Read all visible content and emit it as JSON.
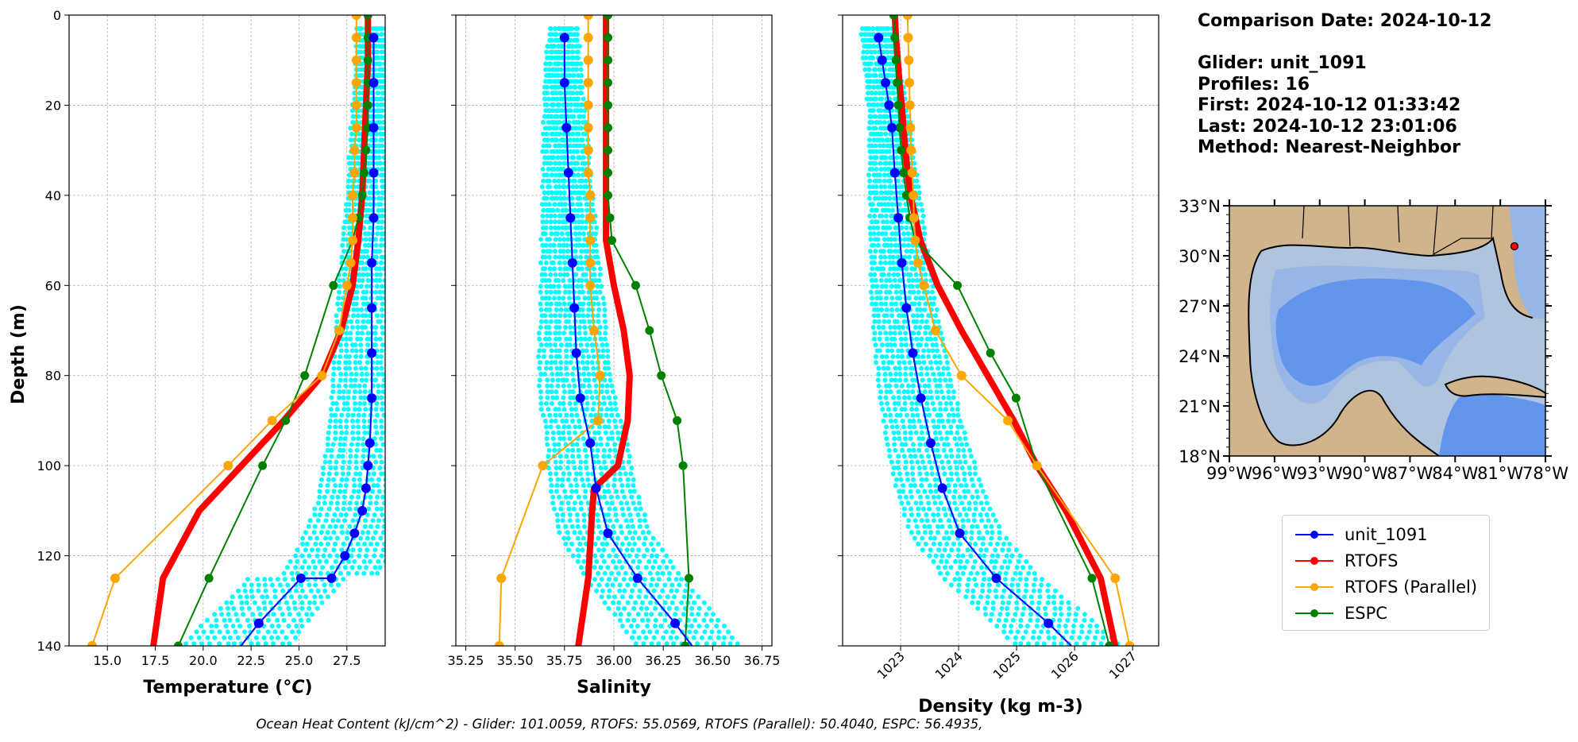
{
  "chart_data": [
    {
      "type": "line",
      "xlabel": "Temperature (°C)",
      "ylabel": "Depth (m)",
      "xlim": [
        13.0,
        29.5
      ],
      "ylim": [
        140,
        0
      ],
      "xticks": [
        15.0,
        17.5,
        20.0,
        22.5,
        25.0,
        27.5
      ],
      "xtick_labels": [
        "15.0",
        "17.5",
        "20.0",
        "22.5",
        "25.0",
        "27.5"
      ],
      "yticks": [
        0,
        20,
        40,
        60,
        80,
        100,
        120,
        140
      ],
      "ytick_labels": [
        "0",
        "20",
        "40",
        "60",
        "80",
        "100",
        "120",
        "140"
      ],
      "grid": true,
      "series": [
        {
          "name": "unit_1091",
          "color": "#0000ff",
          "x": [
            28.9,
            28.9,
            28.9,
            28.9,
            28.9,
            28.8,
            28.8,
            28.8,
            28.8,
            28.7,
            28.6,
            28.5,
            28.3,
            27.9,
            27.4,
            26.7,
            25.1,
            22.9,
            21.6
          ],
          "y": [
            5,
            15,
            25,
            35,
            45,
            55,
            65,
            75,
            85,
            95,
            100,
            105,
            110,
            115,
            120,
            125,
            125,
            135,
            142
          ]
        },
        {
          "name": "RTOFS",
          "color": "#ff0000",
          "x": [
            28.6,
            28.6,
            28.5,
            28.4,
            28.3,
            28.1,
            27.8,
            27.2,
            26.2,
            24.2,
            22.0,
            19.8,
            17.9,
            17.4
          ],
          "y": [
            0,
            10,
            20,
            30,
            40,
            50,
            60,
            70,
            80,
            90,
            100,
            110,
            125,
            140
          ]
        },
        {
          "name": "RTOFS (Parallel)",
          "color": "#ffa500",
          "x": [
            28.0,
            28.0,
            28.0,
            28.0,
            28.0,
            28.0,
            27.9,
            27.9,
            27.8,
            27.8,
            27.8,
            27.7,
            27.5,
            27.1,
            26.2,
            23.6,
            21.3,
            15.4,
            14.2
          ],
          "y": [
            0,
            5,
            10,
            15,
            20,
            25,
            30,
            35,
            40,
            45,
            50,
            55,
            60,
            70,
            80,
            90,
            100,
            125,
            140
          ]
        },
        {
          "name": "ESPC",
          "color": "#008000",
          "x": [
            28.6,
            28.6,
            28.6,
            28.6,
            28.6,
            28.6,
            28.5,
            28.4,
            28.3,
            28.1,
            27.8,
            26.8,
            25.3,
            24.3,
            23.1,
            20.3,
            18.7
          ],
          "y": [
            0,
            5,
            10,
            15,
            20,
            25,
            30,
            35,
            40,
            45,
            50,
            60,
            80,
            90,
            100,
            125,
            140
          ]
        }
      ]
    },
    {
      "type": "line",
      "xlabel": "Salinity",
      "ylim": [
        140,
        0
      ],
      "xlim": [
        35.2,
        36.8
      ],
      "xticks": [
        35.25,
        35.5,
        35.75,
        36.0,
        36.25,
        36.5,
        36.75
      ],
      "xtick_labels": [
        "35.25",
        "35.50",
        "35.75",
        "36.00",
        "36.25",
        "36.50",
        "36.75"
      ],
      "grid": true,
      "series": [
        {
          "name": "unit_1091",
          "color": "#0000ff",
          "x": [
            35.75,
            35.75,
            35.76,
            35.77,
            35.78,
            35.79,
            35.8,
            35.81,
            35.83,
            35.88,
            35.91,
            35.97,
            36.12,
            36.31,
            36.43
          ],
          "y": [
            5,
            15,
            25,
            35,
            45,
            55,
            65,
            75,
            85,
            95,
            105,
            115,
            125,
            135,
            142
          ]
        },
        {
          "name": "RTOFS",
          "color": "#ff0000",
          "x": [
            35.96,
            35.96,
            35.96,
            35.96,
            35.96,
            35.96,
            35.98,
            36.0,
            36.05,
            36.08,
            36.07,
            36.02,
            35.9,
            35.89,
            35.87,
            35.82
          ],
          "y": [
            0,
            10,
            20,
            30,
            40,
            50,
            55,
            60,
            70,
            80,
            90,
            100,
            105,
            110,
            125,
            140
          ]
        },
        {
          "name": "RTOFS (Parallel)",
          "color": "#ffa500",
          "x": [
            35.87,
            35.87,
            35.87,
            35.87,
            35.87,
            35.87,
            35.87,
            35.87,
            35.88,
            35.88,
            35.88,
            35.88,
            35.88,
            35.9,
            35.93,
            35.92,
            35.64,
            35.43,
            35.42
          ],
          "y": [
            0,
            5,
            10,
            15,
            20,
            25,
            30,
            35,
            40,
            45,
            50,
            55,
            60,
            70,
            80,
            90,
            100,
            125,
            140
          ]
        },
        {
          "name": "ESPC",
          "color": "#008000",
          "x": [
            35.97,
            35.97,
            35.97,
            35.97,
            35.97,
            35.97,
            35.97,
            35.97,
            35.97,
            35.98,
            35.99,
            36.11,
            36.18,
            36.24,
            36.32,
            36.35,
            36.38,
            36.36
          ],
          "y": [
            0,
            5,
            10,
            15,
            20,
            25,
            30,
            35,
            40,
            45,
            50,
            60,
            70,
            80,
            90,
            100,
            125,
            140
          ]
        }
      ]
    },
    {
      "type": "line",
      "xlabel": "Density (kg m-3)",
      "ylim": [
        140,
        0
      ],
      "xlim": [
        1022.0,
        1027.45
      ],
      "xticks": [
        1023,
        1024,
        1025,
        1026,
        1027
      ],
      "xtick_labels": [
        "1023",
        "1024",
        "1025",
        "1026",
        "1027"
      ],
      "grid": true,
      "series": [
        {
          "name": "unit_1091",
          "color": "#0000ff",
          "x": [
            1022.62,
            1022.68,
            1022.74,
            1022.8,
            1022.85,
            1022.9,
            1022.96,
            1023.02,
            1023.1,
            1023.21,
            1023.35,
            1023.52,
            1023.72,
            1024.02,
            1024.65,
            1025.55,
            1026.1
          ],
          "y": [
            5,
            10,
            15,
            20,
            25,
            35,
            45,
            55,
            65,
            75,
            85,
            95,
            105,
            115,
            125,
            135,
            142
          ]
        },
        {
          "name": "RTOFS",
          "color": "#ff0000",
          "x": [
            1022.9,
            1022.92,
            1022.95,
            1022.98,
            1023.02,
            1023.08,
            1023.17,
            1023.34,
            1023.64,
            1024.05,
            1024.5,
            1024.95,
            1025.35,
            1025.85,
            1026.45,
            1026.7
          ],
          "y": [
            0,
            5,
            10,
            15,
            20,
            30,
            40,
            50,
            60,
            70,
            80,
            90,
            100,
            110,
            125,
            140
          ]
        },
        {
          "name": "RTOFS (Parallel)",
          "color": "#ffa500",
          "x": [
            1023.12,
            1023.13,
            1023.14,
            1023.15,
            1023.16,
            1023.17,
            1023.18,
            1023.2,
            1023.22,
            1023.23,
            1023.25,
            1023.3,
            1023.4,
            1023.6,
            1024.05,
            1024.85,
            1025.35,
            1026.7,
            1026.95
          ],
          "y": [
            0,
            5,
            10,
            15,
            20,
            25,
            30,
            35,
            40,
            45,
            50,
            55,
            60,
            70,
            80,
            90,
            100,
            125,
            140
          ]
        },
        {
          "name": "ESPC",
          "color": "#008000",
          "x": [
            1022.88,
            1022.9,
            1022.92,
            1022.94,
            1022.96,
            1022.98,
            1023.01,
            1023.05,
            1023.1,
            1023.16,
            1023.25,
            1023.98,
            1024.55,
            1024.99,
            1025.35,
            1026.3,
            1026.6
          ],
          "y": [
            0,
            5,
            10,
            15,
            20,
            25,
            30,
            35,
            40,
            45,
            50,
            60,
            75,
            85,
            100,
            125,
            140
          ]
        }
      ]
    }
  ],
  "info": {
    "comparison_date": "Comparison Date: 2024-10-12",
    "glider": "Glider: unit_1091",
    "profiles": "Profiles: 16",
    "first": "First: 2024-10-12 01:33:42",
    "last": "Last: 2024-10-12 23:01:06",
    "method": "Method: Nearest-Neighbor"
  },
  "map": {
    "lat_labels": [
      "33°N",
      "30°N",
      "27°N",
      "24°N",
      "21°N",
      "18°N"
    ],
    "lon_labels": [
      "99°W",
      "96°W",
      "93°W",
      "90°W",
      "87°W",
      "84°W",
      "81°W",
      "78°W"
    ],
    "land_color": "#d2b48c",
    "shelf_color": "#b0c4de",
    "deep_color": "#6495ed",
    "mid_color": "#99b7e6"
  },
  "legend": [
    {
      "label": "unit_1091",
      "color": "#0000ff"
    },
    {
      "label": "RTOFS",
      "color": "#ff0000"
    },
    {
      "label": "RTOFS (Parallel)",
      "color": "#ffa500"
    },
    {
      "label": "ESPC",
      "color": "#008000"
    }
  ],
  "footer": "Ocean Heat Content (kJ/cm^2) - Glider: 101.0059,  RTOFS: 55.0569,  RTOFS (Parallel): 50.4040,  ESPC: 56.4935,"
}
